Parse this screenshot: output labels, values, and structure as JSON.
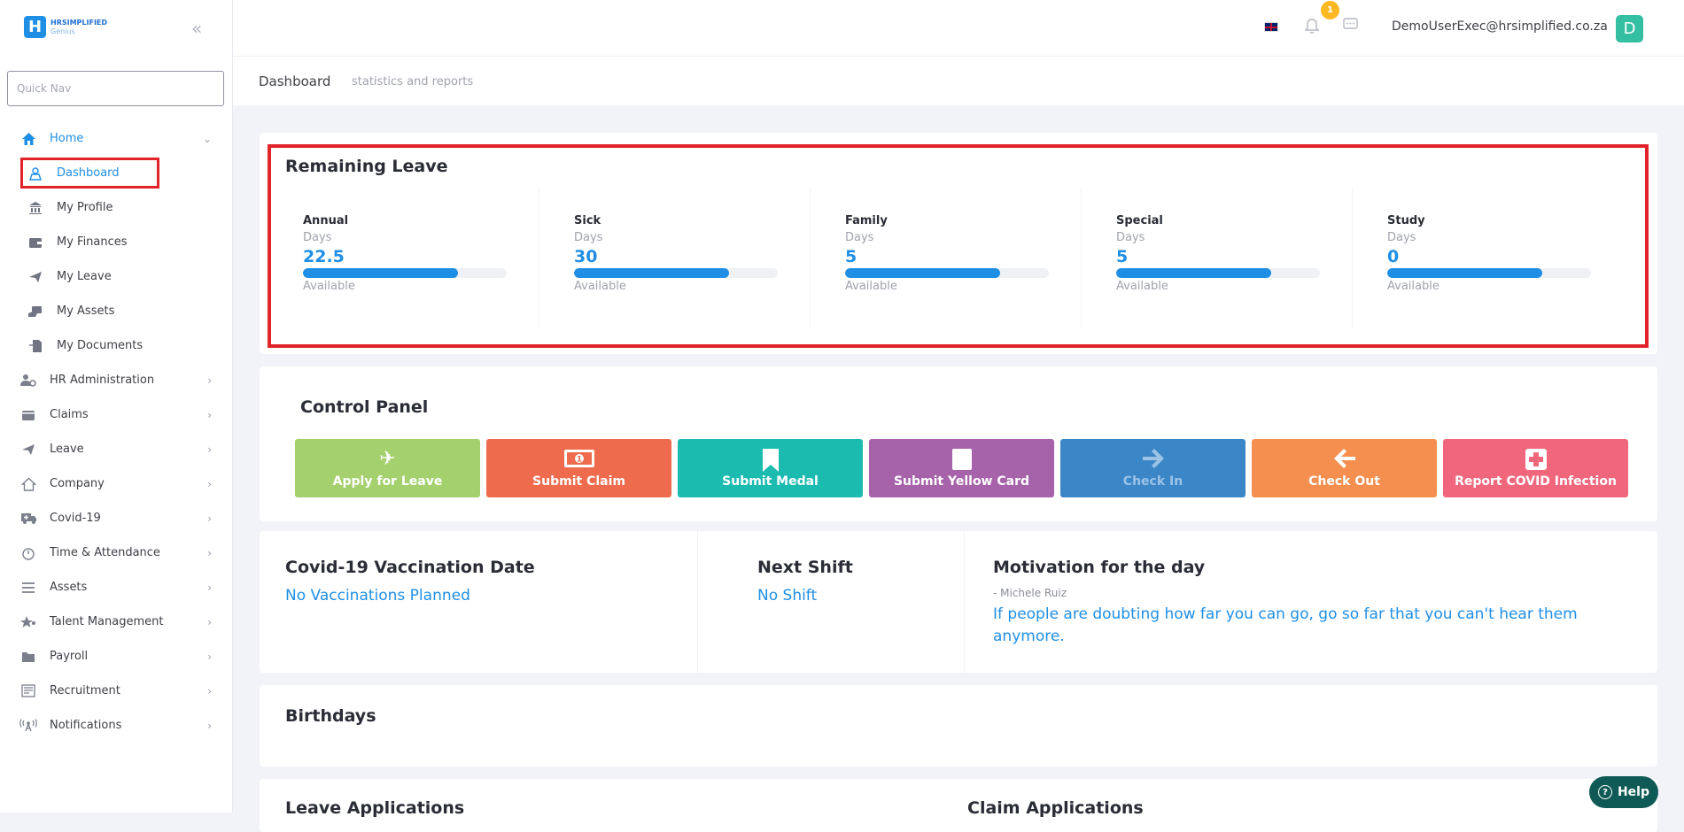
{
  "brand": {
    "line1": "HRSIMPLIFIED",
    "line2": "Genius",
    "mark": "H"
  },
  "quick_nav": {
    "placeholder": "Quick Nav"
  },
  "sidebar": {
    "home": {
      "label": "Home",
      "icon": "home-icon"
    },
    "home_children": [
      {
        "label": "Dashboard",
        "icon": "dashboard-icon"
      },
      {
        "label": "My Profile",
        "icon": "bank-icon"
      },
      {
        "label": "My Finances",
        "icon": "wallet-icon"
      },
      {
        "label": "My Leave",
        "icon": "plane-icon"
      },
      {
        "label": "My Assets",
        "icon": "assets-icon"
      },
      {
        "label": "My Documents",
        "icon": "document-icon"
      }
    ],
    "sections": [
      {
        "label": "HR Administration",
        "icon": "user-cog-icon"
      },
      {
        "label": "Claims",
        "icon": "wallet-icon"
      },
      {
        "label": "Leave",
        "icon": "plane-icon"
      },
      {
        "label": "Company",
        "icon": "home-outline-icon"
      },
      {
        "label": "Covid-19",
        "icon": "ambulance-icon"
      },
      {
        "label": "Time & Attendance",
        "icon": "stopwatch-icon"
      },
      {
        "label": "Assets",
        "icon": "list-icon"
      },
      {
        "label": "Talent Management",
        "icon": "star-user-icon"
      },
      {
        "label": "Payroll",
        "icon": "folder-icon"
      },
      {
        "label": "Recruitment",
        "icon": "newspaper-icon"
      },
      {
        "label": "Notifications",
        "icon": "broadcast-icon"
      }
    ]
  },
  "topbar": {
    "notification_count": "1",
    "user_email": "DemoUserExec@hrsimplified.co.za",
    "avatar_letter": "D"
  },
  "subheader": {
    "title": "Dashboard",
    "description": "statistics and reports"
  },
  "remaining_leave": {
    "title": "Remaining Leave",
    "types": [
      {
        "name": "Annual",
        "unit": "Days",
        "value": "22.5",
        "footer": "Available",
        "fill": 0.76
      },
      {
        "name": "Sick",
        "unit": "Days",
        "value": "30",
        "footer": "Available",
        "fill": 0.76
      },
      {
        "name": "Family",
        "unit": "Days",
        "value": "5",
        "footer": "Available",
        "fill": 0.76
      },
      {
        "name": "Special",
        "unit": "Days",
        "value": "5",
        "footer": "Available",
        "fill": 0.76
      },
      {
        "name": "Study",
        "unit": "Days",
        "value": "0",
        "footer": "Available",
        "fill": 0.76
      }
    ]
  },
  "control_panel": {
    "title": "Control Panel",
    "buttons": [
      {
        "label": "Apply for Leave",
        "icon": "plane-icon",
        "glyph": "✈",
        "color": "#a5d06e"
      },
      {
        "label": "Submit Claim",
        "icon": "money-icon",
        "glyph": "💵",
        "color": "#ef6b4d"
      },
      {
        "label": "Submit Medal",
        "icon": "bookmark-icon",
        "glyph": "🔖",
        "color": "#1bbbb0"
      },
      {
        "label": "Submit Yellow Card",
        "icon": "card-icon",
        "glyph": "▯",
        "color": "#a663a9"
      },
      {
        "label": "Check In",
        "icon": "arrow-right-icon",
        "glyph": "➜",
        "color": "#3b86c7"
      },
      {
        "label": "Check Out",
        "icon": "arrow-left-icon",
        "glyph": "⬅",
        "color": "#f58f4f"
      },
      {
        "label": "Report COVID Infection",
        "icon": "medical-cross-icon",
        "glyph": "✚",
        "color": "#f0677d"
      }
    ]
  },
  "vaccination": {
    "title": "Covid-19 Vaccination Date",
    "value": "No Vaccinations Planned"
  },
  "next_shift": {
    "title": "Next Shift",
    "value": "No Shift"
  },
  "motivation": {
    "title": "Motivation for the day",
    "author": "- Michele Ruiz",
    "quote": "If people are doubting how far you can go, go so far that you can't hear them anymore."
  },
  "birthdays": {
    "title": "Birthdays"
  },
  "bottom": {
    "leave_applications": "Leave Applications",
    "claim_applications": "Claim Applications"
  },
  "help": {
    "label": "Help"
  }
}
